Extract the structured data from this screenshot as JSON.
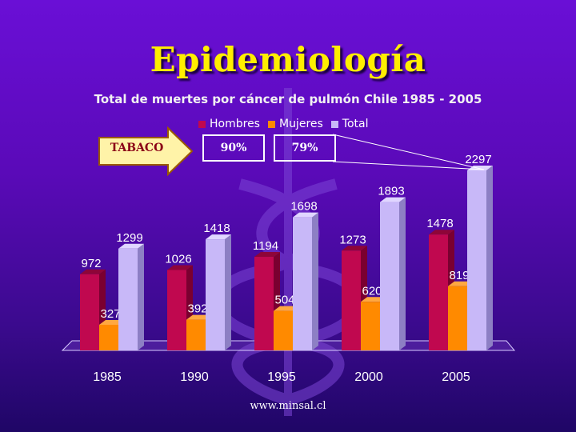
{
  "slide": {
    "title": "Epidemiología",
    "footer": "www.minsal.cl"
  },
  "callout": {
    "label": "TABACO",
    "hombres_pct": "90%",
    "mujeres_pct": "79%"
  },
  "colors": {
    "hombres": "#c0084f",
    "mujeres": "#ff8a00",
    "total": "#c8b8f8",
    "title": "#ffee00"
  },
  "chart_data": {
    "type": "bar",
    "title": "Total de muertes por cáncer de pulmón Chile 1985 - 2005",
    "categories": [
      "1985",
      "1990",
      "1995",
      "2000",
      "2005"
    ],
    "series": [
      {
        "name": "Hombres",
        "values": [
          972,
          1026,
          1194,
          1273,
          1478
        ]
      },
      {
        "name": "Mujeres",
        "values": [
          327,
          392,
          504,
          620,
          819
        ]
      },
      {
        "name": "Total",
        "values": [
          1299,
          1418,
          1698,
          1893,
          2297
        ]
      }
    ],
    "ylim": [
      0,
      2297
    ],
    "grid": false,
    "legend_position": "top"
  }
}
